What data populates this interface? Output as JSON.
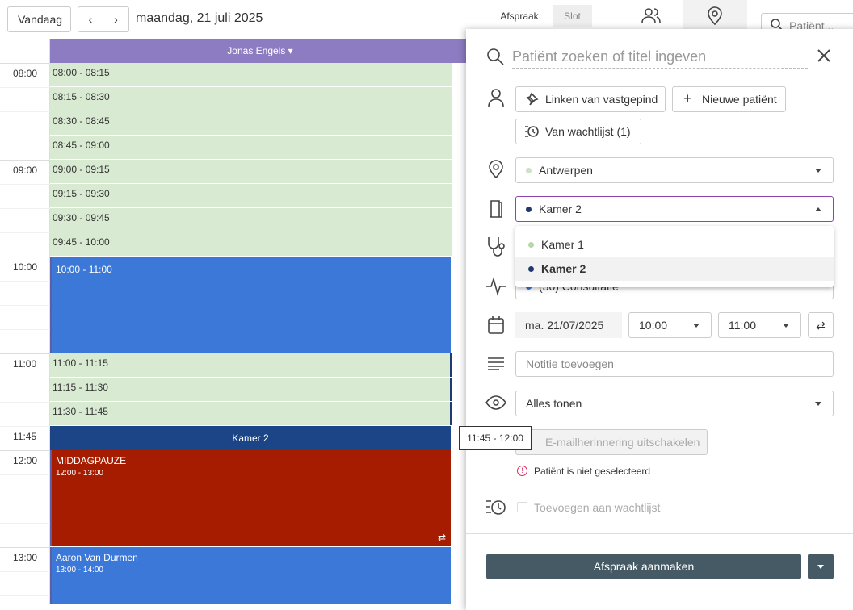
{
  "toolbar": {
    "today": "Vandaag",
    "date": "maandag, 21 juli 2025",
    "tabs": [
      "Afspraak",
      "Slot"
    ],
    "search": "Patiënt..."
  },
  "calendar": {
    "resource": "Jonas Engels",
    "hours": [
      "08:00",
      "09:00",
      "10:00",
      "11:00",
      "11:45",
      "12:00",
      "13:00"
    ],
    "free_slots": [
      "08:00 - 08:15",
      "08:15 - 08:30",
      "08:30 - 08:45",
      "08:45 - 09:00",
      "09:00 - 09:15",
      "09:15 - 09:30",
      "09:30 - 09:45",
      "09:45 - 10:00",
      "11:00 - 11:15",
      "11:15 - 11:30",
      "11:30 - 11:45"
    ],
    "events": [
      {
        "time": "10:00 - 11:00"
      },
      {
        "title": "Kamer 2"
      },
      {
        "title": "MIDDAGPAUZE",
        "time": "12:00 - 13:00"
      },
      {
        "title": "Aaron Van Durmen",
        "time": "13:00 - 14:00"
      }
    ],
    "tooltip": "11:45 - 12:00"
  },
  "panel": {
    "search_placeholder": "Patiënt zoeken of titel ingeven",
    "buttons": [
      "Linken van vastgepind",
      "Nieuwe patiënt",
      "Van wachtlijst (1)"
    ],
    "location": "Antwerpen",
    "room": "Kamer 2",
    "room_options": [
      "Kamer 1",
      "Kamer 2"
    ],
    "type": "(30) Consultatie",
    "date": "ma. 21/07/2025",
    "start": "10:00",
    "end": "11:00",
    "note_placeholder": "Notitie toevoegen",
    "visibility": "Alles tonen",
    "email_toggle": "E-mailherinnering uitschakelen",
    "error": "Patiënt is niet geselecteerd",
    "waitlist": "Toevoegen aan wachtlijst",
    "submit": "Afspraak aanmaken"
  }
}
